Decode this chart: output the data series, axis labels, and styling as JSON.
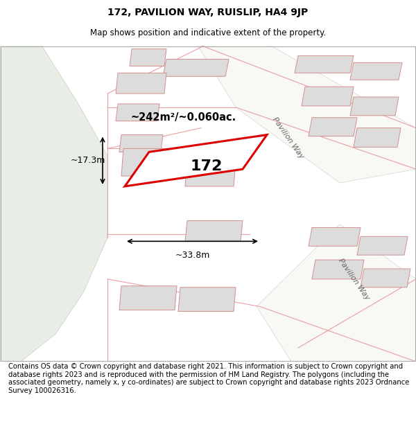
{
  "title_line1": "172, PAVILION WAY, RUISLIP, HA4 9JP",
  "title_line2": "Map shows position and indicative extent of the property.",
  "footer_text": "Contains OS data © Crown copyright and database right 2021. This information is subject to Crown copyright and database rights 2023 and is reproduced with the permission of HM Land Registry. The polygons (including the associated geometry, namely x, y co-ordinates) are subject to Crown copyright and database rights 2023 Ordnance Survey 100026316.",
  "map_bg": "#ffffff",
  "green_color": "#e8ede6",
  "road_fill": "#f5f5f0",
  "road_line_color": "#e8a0a0",
  "building_fill": "#dcdcdc",
  "building_outline": "#d09090",
  "plot_outline_color": "#dd0000",
  "label_172": "172",
  "area_label": "~242m²/~0.060ac.",
  "width_label": "~33.8m",
  "height_label": "~17.3m",
  "street_label": "Pavilion Way",
  "title_fontsize": 10,
  "subtitle_fontsize": 8.5,
  "footer_fontsize": 7.2
}
